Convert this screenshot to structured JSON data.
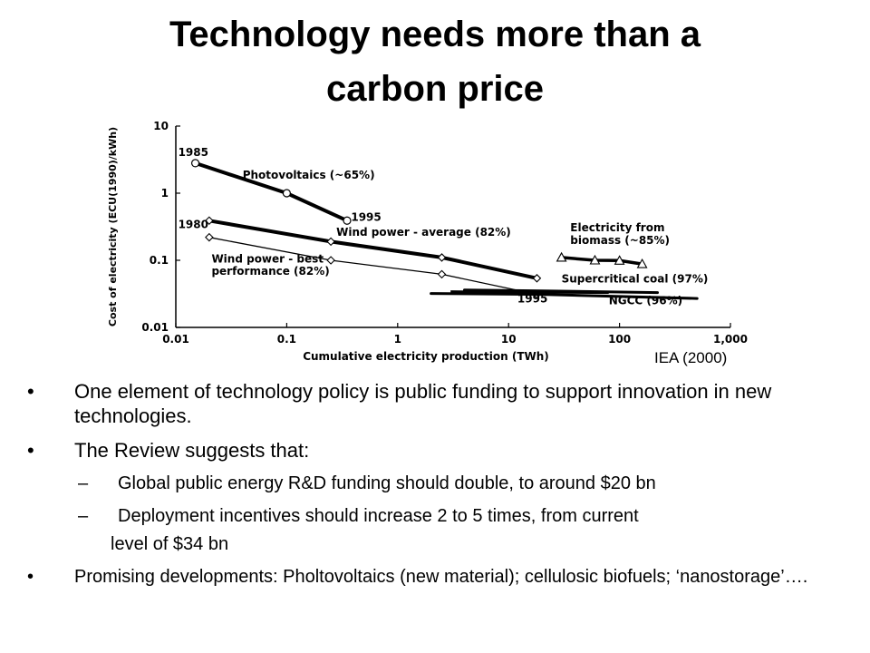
{
  "slide": {
    "title_line1": "Technology needs more than a",
    "title_line2": "carbon price",
    "credit": "IEA (2000)",
    "bullets": [
      "One element of technology policy is public funding to support innovation in new  technologies.",
      "The Review suggests that:"
    ],
    "bullet_mark": "•",
    "sub_mark": "–",
    "sub_bullets": [
      {
        "line1": " Global public energy R&D funding should double, to around $20 bn",
        "line2": ""
      },
      {
        "line1": " Deployment incentives should increase 2 to 5 times, from current",
        "line2": "level of $34 bn"
      }
    ],
    "last_bullet": "Promising developments: Pholtovoltaics (new material); cellulosic biofuels; ‘nanostorage’…."
  },
  "chart_data": {
    "type": "line",
    "xscale": "log",
    "yscale": "log",
    "xlim": [
      0.01,
      1000
    ],
    "ylim": [
      0.01,
      10
    ],
    "xlabel": "Cumulative electricity production (TWh)",
    "ylabel": "Cost of electricity (ECU(1990)/kWh)",
    "xticks": [
      "0.01",
      "0.1",
      "1",
      "10",
      "100",
      "1,000"
    ],
    "yticks": [
      "10",
      "1",
      "0.1",
      "0.01"
    ],
    "series": [
      {
        "name": "Photovoltaics (~65%)",
        "marker": "circle",
        "points": [
          [
            0.015,
            2.8
          ],
          [
            0.1,
            1.0
          ],
          [
            0.35,
            0.39
          ]
        ]
      },
      {
        "name": "Wind power - average (82%)",
        "marker": "diamond",
        "points": [
          [
            0.02,
            0.39
          ],
          [
            0.25,
            0.19
          ],
          [
            2.5,
            0.11
          ],
          [
            18,
            0.054
          ]
        ]
      },
      {
        "name": "Wind power - best performance (82%)",
        "marker": "diamond",
        "points": [
          [
            0.02,
            0.22
          ],
          [
            0.25,
            0.1
          ],
          [
            2.5,
            0.062
          ],
          [
            18,
            0.031
          ]
        ]
      },
      {
        "name": "Electricity from biomass (~85%)",
        "marker": "triangle",
        "points": [
          [
            30,
            0.11
          ],
          [
            60,
            0.1
          ],
          [
            100,
            0.099
          ],
          [
            160,
            0.088
          ]
        ]
      },
      {
        "name": "Supercritical coal (97%)",
        "marker": "none",
        "points": [
          [
            4,
            0.036
          ],
          [
            20,
            0.035
          ],
          [
            220,
            0.033
          ]
        ]
      },
      {
        "name": "NGCC (96%)",
        "marker": "none",
        "points": [
          [
            2,
            0.032
          ],
          [
            20,
            0.031
          ],
          [
            500,
            0.027
          ]
        ]
      }
    ],
    "annotations": [
      "1985",
      "1995",
      "1980",
      "1995"
    ]
  }
}
